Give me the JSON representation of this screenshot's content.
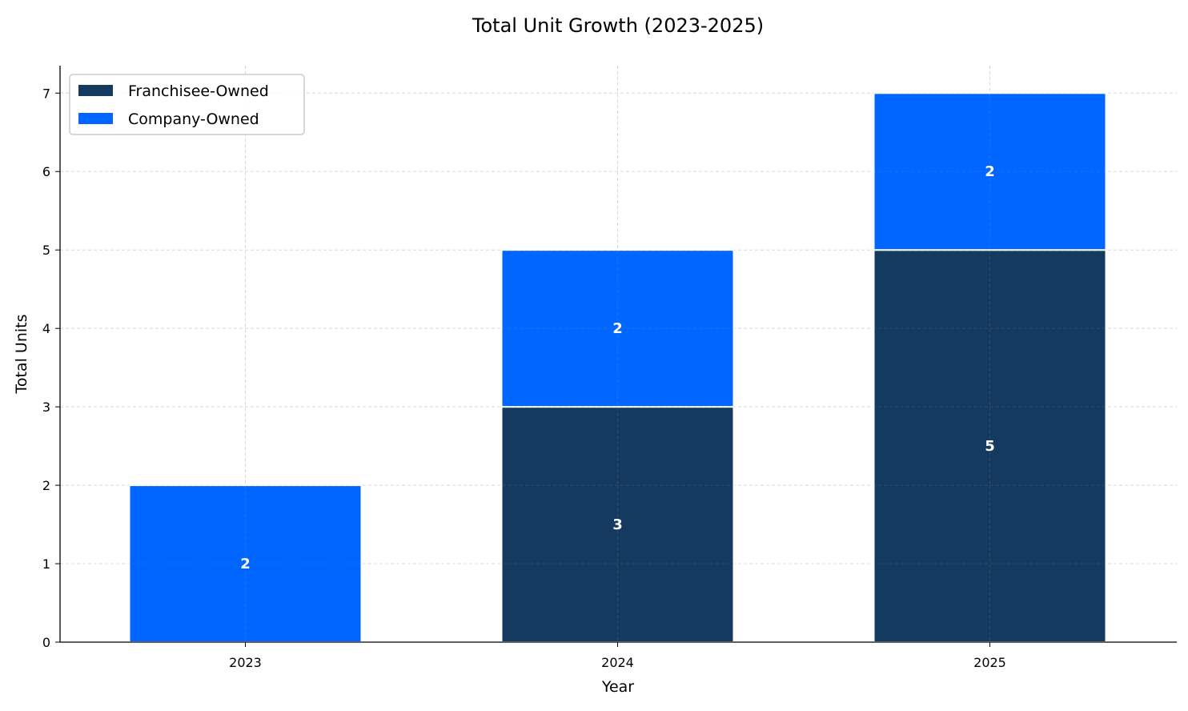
{
  "chart_data": {
    "type": "bar",
    "stacked": true,
    "title": "Total Unit Growth (2023-2025)",
    "xlabel": "Year",
    "ylabel": "Total Units",
    "categories": [
      "2023",
      "2024",
      "2025"
    ],
    "series": [
      {
        "name": "Franchisee-Owned",
        "values": [
          0,
          3,
          5
        ],
        "color": "#143A5F"
      },
      {
        "name": "Company-Owned",
        "values": [
          2,
          2,
          2
        ],
        "color": "#0066FF"
      }
    ],
    "ylim": [
      0,
      7.35
    ],
    "yticks": [
      0,
      1,
      2,
      3,
      4,
      5,
      6,
      7
    ],
    "grid": true,
    "legend_position": "top-left"
  }
}
